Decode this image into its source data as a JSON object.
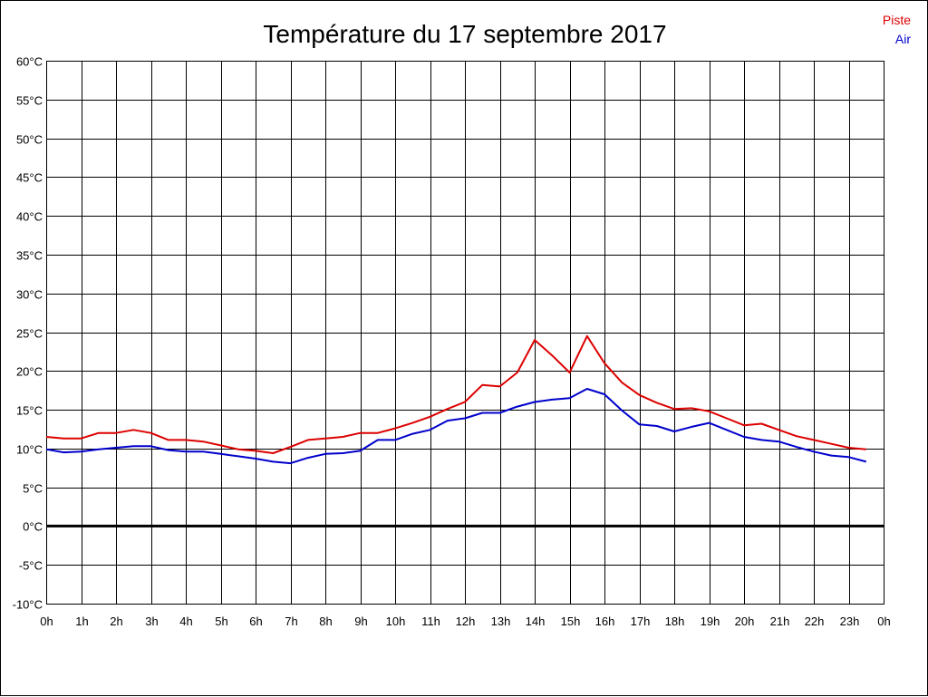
{
  "chart_data": {
    "type": "line",
    "title": "Température du 17 septembre 2017",
    "xlabel": "",
    "ylabel": "",
    "x_ticks": [
      "0h",
      "1h",
      "2h",
      "3h",
      "4h",
      "5h",
      "6h",
      "7h",
      "8h",
      "9h",
      "10h",
      "11h",
      "12h",
      "13h",
      "14h",
      "15h",
      "16h",
      "17h",
      "18h",
      "19h",
      "20h",
      "21h",
      "22h",
      "23h",
      "0h"
    ],
    "y_ticks": [
      "-10°C",
      "-5°C",
      "0°C",
      "5°C",
      "10°C",
      "15°C",
      "20°C",
      "25°C",
      "30°C",
      "35°C",
      "40°C",
      "45°C",
      "50°C",
      "55°C",
      "60°C"
    ],
    "xlim": [
      0,
      24
    ],
    "ylim": [
      -10,
      60
    ],
    "grid": true,
    "legend_position": "top-right",
    "zero_line": 0,
    "x": [
      0,
      0.5,
      1,
      1.5,
      2,
      2.5,
      3,
      3.5,
      4,
      4.5,
      5,
      5.5,
      6,
      6.5,
      7,
      7.5,
      8,
      8.5,
      9,
      9.5,
      10,
      10.5,
      11,
      11.5,
      12,
      12.5,
      13,
      13.5,
      14,
      14.5,
      15,
      15.5,
      16,
      16.5,
      17,
      17.5,
      18,
      18.5,
      19,
      19.5,
      20,
      20.5,
      21,
      21.5,
      22,
      22.5,
      23,
      23.5
    ],
    "series": [
      {
        "name": "Piste",
        "color": "#dd0000",
        "values": [
          11.5,
          11.3,
          11.3,
          12.0,
          12.0,
          12.4,
          12.0,
          11.1,
          11.1,
          10.9,
          10.4,
          9.9,
          9.7,
          9.4,
          10.2,
          11.1,
          11.3,
          11.5,
          12.0,
          12.0,
          12.6,
          13.3,
          14.1,
          15.1,
          16.0,
          18.2,
          18.0,
          19.8,
          24.0,
          22.0,
          19.8,
          24.5,
          21.0,
          18.5,
          16.9,
          15.9,
          15.1,
          15.2,
          14.8,
          13.9,
          13.0,
          13.2,
          12.4,
          11.6,
          11.1,
          10.6,
          10.1,
          9.9
        ]
      },
      {
        "name": "Air",
        "color": "#0000cc",
        "values": [
          9.9,
          9.5,
          9.6,
          9.9,
          10.1,
          10.3,
          10.3,
          9.8,
          9.6,
          9.6,
          9.3,
          9.0,
          8.7,
          8.3,
          8.1,
          8.8,
          9.3,
          9.4,
          9.7,
          11.1,
          11.1,
          11.9,
          12.4,
          13.6,
          13.9,
          14.6,
          14.6,
          15.4,
          16.0,
          16.3,
          16.5,
          17.7,
          17.0,
          14.9,
          13.1,
          12.9,
          12.2,
          12.8,
          13.3,
          12.4,
          11.5,
          11.1,
          10.9,
          10.2,
          9.6,
          9.1,
          8.9,
          8.3
        ]
      }
    ]
  }
}
